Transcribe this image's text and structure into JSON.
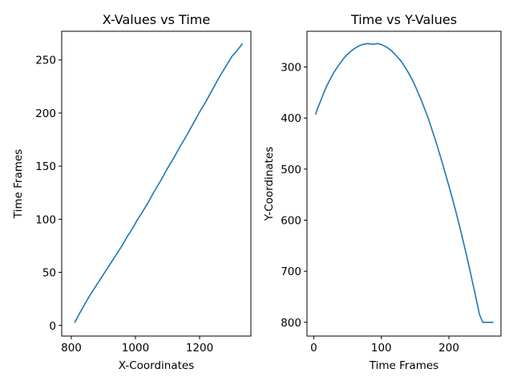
{
  "chart_data": [
    {
      "type": "line",
      "title": "X-Values vs Time",
      "xlabel": "X-Coordinates",
      "ylabel": "Time Frames",
      "xlim": [
        770,
        1360
      ],
      "ylim": [
        -10,
        277
      ],
      "xticks": [
        800,
        1000,
        1200
      ],
      "yticks": [
        0,
        50,
        100,
        150,
        200,
        250
      ],
      "y_inverted": false,
      "series": [
        {
          "color": "#1f77b4",
          "x": [
            811,
            825,
            840,
            855,
            870,
            885,
            900,
            915,
            930,
            945,
            960,
            975,
            990,
            1005,
            1020,
            1040,
            1060,
            1080,
            1100,
            1120,
            1140,
            1160,
            1180,
            1200,
            1220,
            1240,
            1260,
            1280,
            1300,
            1320,
            1333
          ],
          "y": [
            3,
            11,
            19,
            27,
            34,
            41,
            48,
            55,
            62,
            69,
            76,
            84,
            91,
            99,
            106,
            116,
            127,
            137,
            148,
            158,
            169,
            179,
            190,
            201,
            211,
            222,
            233,
            243,
            253,
            260,
            265
          ]
        }
      ]
    },
    {
      "type": "line",
      "title": "Time vs Y-Values",
      "xlabel": "Time Frames",
      "ylabel": "Y-Coordinates",
      "xlim": [
        -10,
        277
      ],
      "ylim": [
        827,
        230
      ],
      "xticks": [
        0,
        100,
        200
      ],
      "yticks": [
        300,
        400,
        500,
        600,
        700,
        800
      ],
      "y_inverted": true,
      "series": [
        {
          "color": "#1f77b4",
          "x": [
            3,
            5,
            10,
            15,
            20,
            25,
            30,
            35,
            40,
            45,
            50,
            55,
            60,
            65,
            70,
            75,
            80,
            85,
            90,
            95,
            100,
            105,
            110,
            115,
            120,
            125,
            130,
            135,
            140,
            145,
            150,
            155,
            160,
            165,
            170,
            175,
            180,
            185,
            190,
            195,
            200,
            205,
            210,
            215,
            220,
            225,
            230,
            235,
            240,
            245,
            250,
            255,
            260,
            265
          ],
          "y": [
            392,
            383,
            367,
            350,
            335,
            322,
            310,
            300,
            291,
            282,
            275,
            269,
            264,
            260,
            257,
            255,
            254,
            255,
            255,
            254,
            256,
            259,
            263,
            268,
            275,
            282,
            290,
            300,
            311,
            323,
            337,
            352,
            368,
            385,
            403,
            423,
            443,
            465,
            487,
            510,
            533,
            557,
            582,
            608,
            635,
            663,
            692,
            722,
            752,
            784,
            800,
            800,
            800,
            800
          ]
        }
      ]
    }
  ]
}
